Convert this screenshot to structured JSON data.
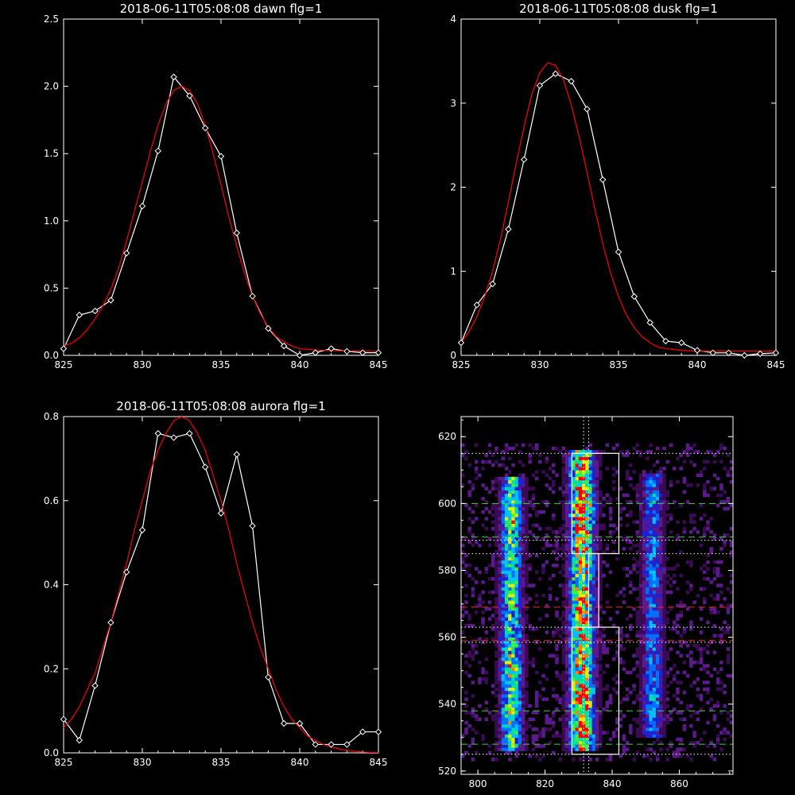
{
  "chart_data": [
    {
      "id": "dawn",
      "type": "line",
      "title": "2018-06-11T05:08:08 dawn flg=1",
      "xlim": [
        825,
        845
      ],
      "ylim": [
        0,
        2.5
      ],
      "xticks": [
        "825",
        "830",
        "835",
        "840",
        "845"
      ],
      "yticks": [
        "0.0",
        "0.5",
        "1.0",
        "1.5",
        "2.0",
        "2.5"
      ],
      "series": [
        {
          "role": "measured",
          "color": "#ffffff",
          "marker": "diamond",
          "x": [
            825,
            826,
            827,
            828,
            829,
            830,
            831,
            832,
            833,
            834,
            835,
            836,
            837,
            838,
            839,
            840,
            841,
            842,
            843,
            844,
            845
          ],
          "y": [
            0.05,
            0.3,
            0.33,
            0.41,
            0.76,
            1.11,
            1.52,
            2.07,
            1.93,
            1.69,
            1.48,
            0.91,
            0.44,
            0.2,
            0.07,
            0.0,
            0.02,
            0.05,
            0.03,
            0.02,
            0.02
          ]
        },
        {
          "role": "fit",
          "color": "#ff0000",
          "x": [
            825,
            825.5,
            826,
            826.5,
            827,
            827.5,
            828,
            828.5,
            829,
            829.5,
            830,
            830.5,
            831,
            831.5,
            832,
            832.5,
            833,
            833.5,
            834,
            834.5,
            835,
            835.5,
            836,
            836.5,
            837,
            837.5,
            838,
            838.5,
            839,
            839.5,
            840,
            840.5,
            841,
            841.5,
            842,
            842.5,
            843,
            843.5,
            844,
            844.5,
            845
          ],
          "y": [
            0.07,
            0.09,
            0.13,
            0.19,
            0.27,
            0.37,
            0.49,
            0.65,
            0.85,
            1.07,
            1.29,
            1.51,
            1.71,
            1.87,
            1.97,
            2.0,
            1.97,
            1.87,
            1.71,
            1.5,
            1.27,
            1.03,
            0.81,
            0.61,
            0.44,
            0.31,
            0.21,
            0.14,
            0.1,
            0.07,
            0.05,
            0.045,
            0.04,
            0.038,
            0.035,
            0.034,
            0.033,
            0.032,
            0.031,
            0.03,
            0.03
          ]
        }
      ]
    },
    {
      "id": "dusk",
      "type": "line",
      "title": "2018-06-11T05:08:08 dusk flg=1",
      "xlim": [
        825,
        845
      ],
      "ylim": [
        0,
        4
      ],
      "xticks": [
        "825",
        "830",
        "835",
        "840",
        "845"
      ],
      "yticks": [
        "0",
        "1",
        "2",
        "3",
        "4"
      ],
      "series": [
        {
          "role": "measured",
          "color": "#ffffff",
          "marker": "diamond",
          "x": [
            825,
            826,
            827,
            828,
            829,
            830,
            831,
            832,
            833,
            834,
            835,
            836,
            837,
            838,
            839,
            840,
            841,
            842,
            843,
            844,
            845
          ],
          "y": [
            0.15,
            0.6,
            0.85,
            1.5,
            2.33,
            3.21,
            3.35,
            3.26,
            2.93,
            2.09,
            1.23,
            0.7,
            0.39,
            0.17,
            0.15,
            0.06,
            0.03,
            0.03,
            0.0,
            0.02,
            0.03
          ]
        },
        {
          "role": "fit",
          "color": "#ff0000",
          "x": [
            825,
            825.5,
            826,
            826.5,
            827,
            827.5,
            828,
            828.5,
            829,
            829.5,
            830,
            830.5,
            831,
            831.5,
            832,
            832.5,
            833,
            833.5,
            834,
            834.5,
            835,
            835.5,
            836,
            836.5,
            837,
            837.5,
            838,
            838.5,
            839,
            839.5,
            840,
            840.5,
            841,
            841.5,
            842,
            842.5,
            843,
            843.5,
            844,
            844.5,
            845
          ],
          "y": [
            0.15,
            0.28,
            0.46,
            0.7,
            1.0,
            1.38,
            1.82,
            2.28,
            2.72,
            3.11,
            3.36,
            3.48,
            3.45,
            3.28,
            2.98,
            2.6,
            2.18,
            1.74,
            1.33,
            0.98,
            0.7,
            0.48,
            0.33,
            0.22,
            0.15,
            0.1,
            0.08,
            0.07,
            0.06,
            0.055,
            0.05,
            0.05,
            0.05,
            0.05,
            0.05,
            0.05,
            0.05,
            0.05,
            0.05,
            0.05,
            0.05
          ]
        }
      ]
    },
    {
      "id": "aurora",
      "type": "line",
      "title": "2018-06-11T05:08:08 aurora flg=1",
      "xlim": [
        825,
        845
      ],
      "ylim": [
        0,
        0.8
      ],
      "xticks": [
        "825",
        "830",
        "835",
        "840",
        "845"
      ],
      "yticks": [
        "0.0",
        "0.2",
        "0.4",
        "0.6",
        "0.8"
      ],
      "series": [
        {
          "role": "measured",
          "color": "#ffffff",
          "marker": "diamond",
          "x": [
            825,
            826,
            827,
            828,
            829,
            830,
            831,
            832,
            833,
            834,
            835,
            836,
            837,
            838,
            839,
            840,
            841,
            842,
            843,
            844,
            845
          ],
          "y": [
            0.08,
            0.03,
            0.16,
            0.31,
            0.43,
            0.53,
            0.76,
            0.75,
            0.76,
            0.68,
            0.57,
            0.71,
            0.54,
            0.18,
            0.07,
            0.07,
            0.02,
            0.02,
            0.02,
            0.05,
            0.05
          ]
        },
        {
          "role": "fit",
          "color": "#ff0000",
          "x": [
            825,
            825.5,
            826,
            826.5,
            827,
            827.5,
            828,
            828.5,
            829,
            829.5,
            830,
            830.5,
            831,
            831.5,
            832,
            832.5,
            833,
            833.5,
            834,
            834.5,
            835,
            835.5,
            836,
            836.5,
            837,
            837.5,
            838,
            838.5,
            839,
            839.5,
            840,
            840.5,
            841,
            841.5,
            842,
            842.5,
            843,
            843.5,
            844,
            844.5,
            845
          ],
          "y": [
            0.06,
            0.08,
            0.11,
            0.15,
            0.19,
            0.25,
            0.31,
            0.38,
            0.45,
            0.53,
            0.6,
            0.67,
            0.72,
            0.76,
            0.79,
            0.8,
            0.79,
            0.76,
            0.72,
            0.66,
            0.6,
            0.53,
            0.45,
            0.38,
            0.31,
            0.25,
            0.2,
            0.15,
            0.11,
            0.08,
            0.06,
            0.04,
            0.03,
            0.02,
            0.014,
            0.009,
            0.006,
            0.004,
            0.002,
            0.001,
            0.001
          ]
        }
      ]
    },
    {
      "id": "image",
      "type": "heatmap",
      "title": "",
      "xlim": [
        795,
        876
      ],
      "ylim": [
        519,
        626
      ],
      "xticks": [
        "800",
        "820",
        "840",
        "860"
      ],
      "yticks": [
        "520",
        "540",
        "560",
        "580",
        "600",
        "620"
      ],
      "xtick_values": [
        800,
        820,
        840,
        860
      ],
      "ytick_values": [
        520,
        540,
        560,
        580,
        600,
        620
      ],
      "colormap": [
        "#000000",
        "#3a0a55",
        "#5a1a8c",
        "#2020d0",
        "#0070ff",
        "#00c0ff",
        "#00e0a0",
        "#40f040",
        "#e0f000",
        "#ff8000",
        "#ff0000"
      ],
      "bands": [
        {
          "x_center": 810,
          "width": 8,
          "y_start": 526,
          "y_end": 607,
          "peak": 0.72,
          "hot_y": [
            535,
            550,
            595
          ]
        },
        {
          "x_center": 831,
          "width": 9,
          "y_start": 526,
          "y_end": 615,
          "peak": 1.0,
          "hot_y": [
            533,
            540,
            545,
            597,
            600
          ]
        },
        {
          "x_center": 852,
          "width": 8,
          "y_start": 530,
          "y_end": 608,
          "peak": 0.45,
          "hot_y": [
            541,
            600
          ]
        }
      ],
      "boxes": [
        {
          "x0": 828,
          "x1": 842,
          "y0": 585,
          "y1": 615,
          "color": "#ffffff"
        },
        {
          "x0": 828,
          "x1": 842,
          "y0": 525,
          "y1": 563,
          "color": "#ffffff"
        },
        {
          "x0": 833,
          "x1": 836,
          "y0": 563,
          "y1": 585,
          "color": "#ffffff"
        }
      ],
      "hlines": [
        {
          "y": 615,
          "color": "#ffffff",
          "style": "dotted"
        },
        {
          "y": 600,
          "color": "#40d040",
          "style": "dashed"
        },
        {
          "y": 590,
          "color": "#40d040",
          "style": "dashed"
        },
        {
          "y": 589,
          "color": "#ffffff",
          "style": "dotted"
        },
        {
          "y": 585,
          "color": "#ffffff",
          "style": "dotted"
        },
        {
          "y": 569,
          "color": "#ff2020",
          "style": "dashed"
        },
        {
          "y": 563,
          "color": "#ffffff",
          "style": "dotted"
        },
        {
          "y": 559,
          "color": "#ff2020",
          "style": "dashed"
        },
        {
          "y": 558.5,
          "color": "#ffffff",
          "style": "dotted"
        },
        {
          "y": 538,
          "color": "#40d040",
          "style": "dashed"
        },
        {
          "y": 528,
          "color": "#40d040",
          "style": "dashed"
        },
        {
          "y": 525,
          "color": "#ffffff",
          "style": "dotted"
        }
      ],
      "vlines": [
        {
          "x": 831.5,
          "color": "#ffffff",
          "style": "dotted"
        },
        {
          "x": 833,
          "color": "#ffffff",
          "style": "dotted"
        }
      ]
    }
  ]
}
